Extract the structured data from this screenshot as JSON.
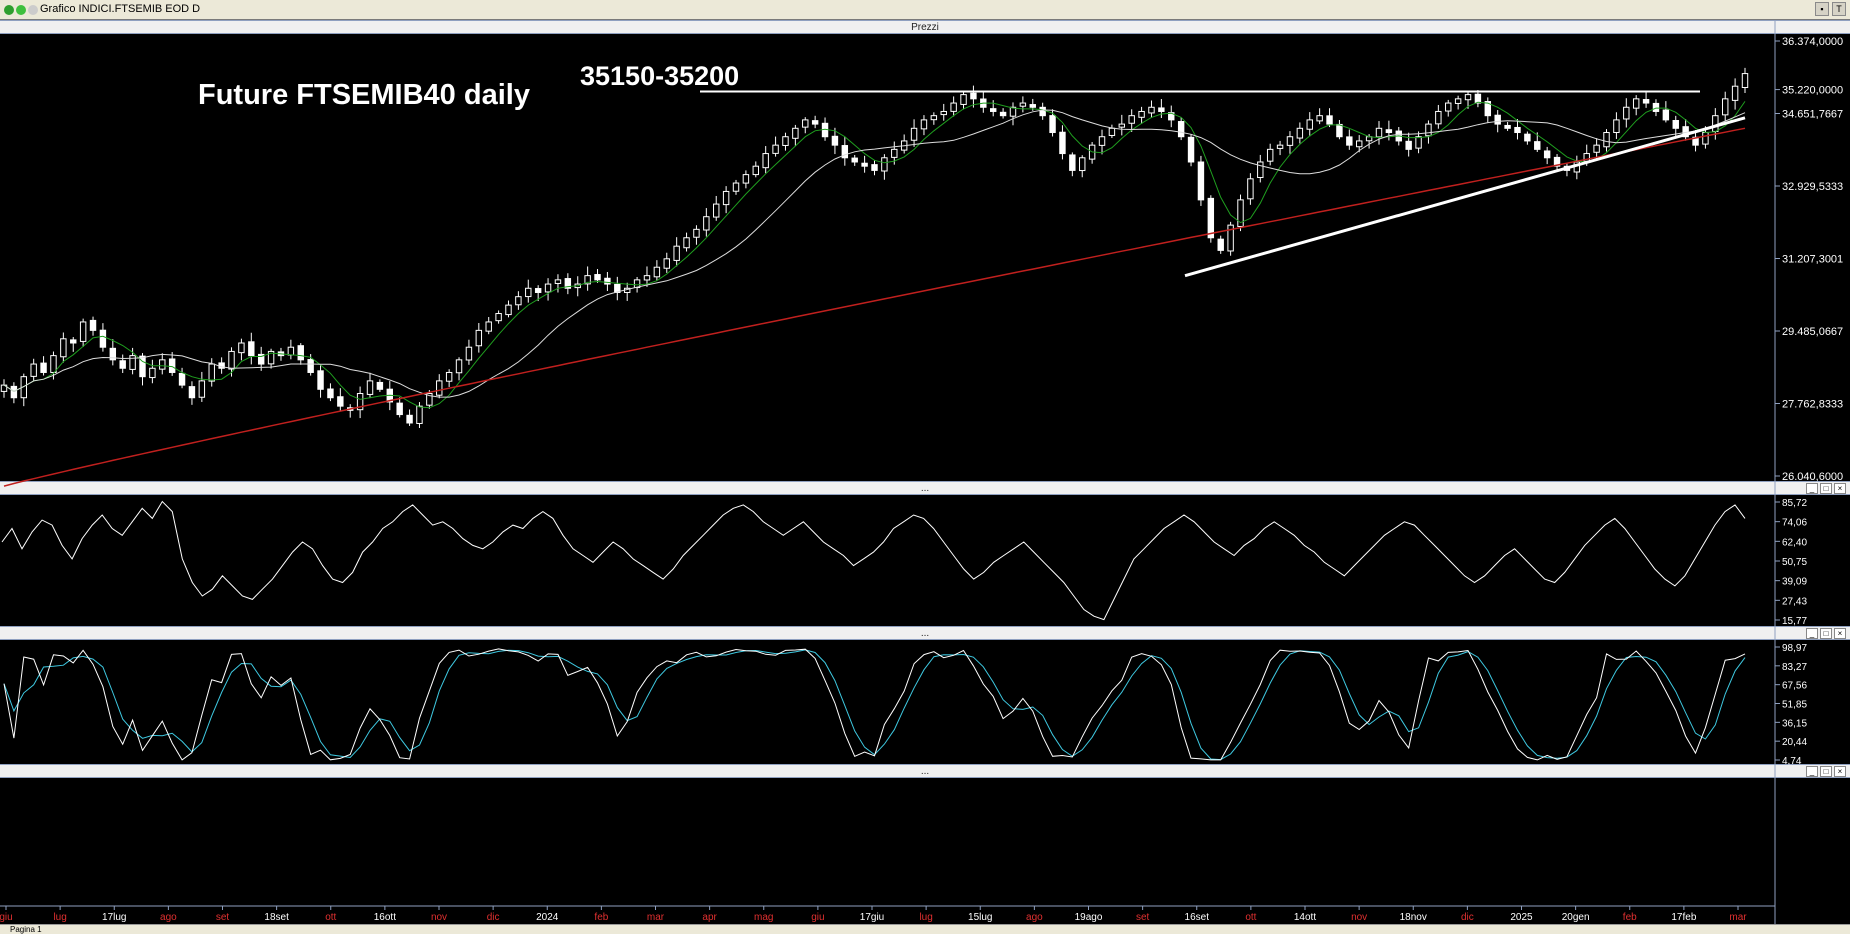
{
  "window": {
    "title": "Grafico INDICI.FTSEMIB EOD D",
    "title_right": "T"
  },
  "panels": {
    "price_header": "Prezzi",
    "osc1_header": "...",
    "osc2_header": "...",
    "osc3_header": "..."
  },
  "status": {
    "tab_label": "Pagina 1"
  },
  "colors": {
    "background": "#000000",
    "candle": "#ffffff",
    "ma_short": "#1f9e1f",
    "ma_mid": "#dcdcdc",
    "ma_long": "#c0201e",
    "stoch_k": "#ffffff",
    "stoch_d": "#3ec8e0",
    "panel_border": "#8fa0c0"
  },
  "chart_data": [
    {
      "type": "candlestick",
      "title": "Future FTSEMIB40 daily",
      "annotation": "35150-35200",
      "ylim": [
        26040.6,
        36374.0
      ],
      "y_ticks": [
        "36.374,0000",
        "35.220,0000",
        "34.651,7667",
        "32.929,5333",
        "31.207,3001",
        "29.485,0667",
        "27.762,8333",
        "26.040,6000"
      ],
      "y_tick_values": [
        36374.0,
        35220.0,
        34651.7667,
        32929.5333,
        31207.3001,
        29485.0667,
        27762.8333,
        26040.6
      ],
      "x_labels": [
        "giu",
        "lug",
        "17lug",
        "ago",
        "set",
        "18set",
        "ott",
        "16ott",
        "nov",
        "dic",
        "2024",
        "feb",
        "mar",
        "apr",
        "mag",
        "giu",
        "17giu",
        "lug",
        "15lug",
        "ago",
        "19ago",
        "set",
        "16set",
        "ott",
        "14ott",
        "nov",
        "18nov",
        "dic",
        "2025",
        "20gen",
        "feb",
        "17feb",
        "mar"
      ],
      "x_label_red": [
        "giu",
        "lug",
        "ago",
        "set",
        "ott",
        "nov",
        "dic",
        "feb",
        "mar",
        "apr",
        "mag",
        "giu",
        "lug",
        "ago",
        "set",
        "ott",
        "nov",
        "dic",
        "feb",
        "mar"
      ],
      "resistance_level": 35175,
      "support_trendline": {
        "from_value": 30800,
        "to_value": 34550
      },
      "close_series": [
        28200,
        27900,
        28400,
        28700,
        28500,
        28900,
        29300,
        29200,
        29700,
        29500,
        29100,
        28800,
        28600,
        28900,
        28400,
        28600,
        28800,
        28500,
        28200,
        27900,
        28300,
        28700,
        28600,
        29000,
        29200,
        28900,
        28700,
        29000,
        28900,
        29100,
        28800,
        28500,
        28100,
        27900,
        27700,
        27600,
        28000,
        28300,
        28100,
        27800,
        27500,
        27300,
        27700,
        28000,
        28300,
        28500,
        28800,
        29100,
        29500,
        29700,
        29900,
        30100,
        30300,
        30500,
        30400,
        30600,
        30700,
        30500,
        30600,
        30800,
        30700,
        30600,
        30400,
        30500,
        30700,
        30800,
        31000,
        31200,
        31500,
        31700,
        31900,
        32200,
        32500,
        32800,
        33000,
        33200,
        33400,
        33700,
        33900,
        34100,
        34300,
        34500,
        34400,
        34100,
        33900,
        33600,
        33500,
        33400,
        33300,
        33600,
        33800,
        34000,
        34300,
        34500,
        34600,
        34700,
        34900,
        35100,
        35000,
        34800,
        34700,
        34600,
        34800,
        34900,
        34800,
        34600,
        34200,
        33700,
        33300,
        33600,
        33900,
        34100,
        34300,
        34400,
        34600,
        34700,
        34800,
        34700,
        34500,
        34100,
        33500,
        32600,
        31700,
        31400,
        32000,
        32600,
        33100,
        33500,
        33800,
        33900,
        34100,
        34300,
        34500,
        34600,
        34400,
        34100,
        33900,
        34000,
        34100,
        34300,
        34200,
        34000,
        33800,
        34100,
        34400,
        34700,
        34900,
        35000,
        35100,
        34900,
        34600,
        34400,
        34300,
        34200,
        34000,
        33800,
        33600,
        33400,
        33300,
        33500,
        33700,
        33900,
        34200,
        34500,
        34800,
        35000,
        34900,
        34700,
        34500,
        34300,
        34100,
        33900,
        34200,
        34600,
        35000,
        35300,
        35600
      ]
    },
    {
      "type": "line",
      "name": "RSI",
      "ylim": [
        15.77,
        85.72
      ],
      "y_ticks": [
        "85,72",
        "74,06",
        "62,40",
        "50,75",
        "39,09",
        "27,43",
        "15,77"
      ],
      "y_tick_values": [
        85.72,
        74.06,
        62.4,
        50.75,
        39.09,
        27.43,
        15.77
      ],
      "values": [
        62,
        70,
        58,
        68,
        75,
        72,
        60,
        52,
        64,
        72,
        78,
        70,
        66,
        74,
        82,
        76,
        86,
        80,
        52,
        38,
        30,
        34,
        42,
        36,
        30,
        28,
        34,
        40,
        48,
        56,
        62,
        58,
        48,
        40,
        38,
        44,
        56,
        62,
        70,
        74,
        80,
        84,
        78,
        72,
        74,
        70,
        64,
        60,
        58,
        62,
        68,
        72,
        70,
        76,
        80,
        76,
        66,
        58,
        54,
        50,
        56,
        62,
        58,
        52,
        48,
        44,
        40,
        46,
        54,
        60,
        66,
        72,
        78,
        82,
        84,
        80,
        74,
        70,
        66,
        70,
        74,
        68,
        62,
        58,
        54,
        48,
        52,
        56,
        62,
        70,
        74,
        78,
        76,
        70,
        62,
        54,
        46,
        40,
        44,
        50,
        54,
        58,
        62,
        56,
        50,
        44,
        38,
        30,
        22,
        18,
        16,
        28,
        40,
        52,
        58,
        64,
        70,
        74,
        78,
        74,
        68,
        62,
        58,
        54,
        60,
        64,
        70,
        74,
        70,
        66,
        60,
        56,
        50,
        46,
        42,
        48,
        54,
        60,
        66,
        70,
        74,
        72,
        66,
        60,
        54,
        48,
        42,
        38,
        42,
        48,
        54,
        58,
        52,
        46,
        40,
        38,
        44,
        52,
        60,
        66,
        72,
        76,
        70,
        62,
        54,
        46,
        40,
        36,
        42,
        52,
        62,
        72,
        80,
        84,
        76
      ]
    },
    {
      "type": "line",
      "name": "Stochastic",
      "ylim": [
        4.74,
        98.97
      ],
      "y_ticks": [
        "98,97",
        "83,27",
        "67,56",
        "51,85",
        "36,15",
        "20,44",
        "4,74"
      ],
      "y_tick_values": [
        98.97,
        83.27,
        67.56,
        51.85,
        36.15,
        20.44,
        4.74
      ],
      "period": 9
    }
  ]
}
